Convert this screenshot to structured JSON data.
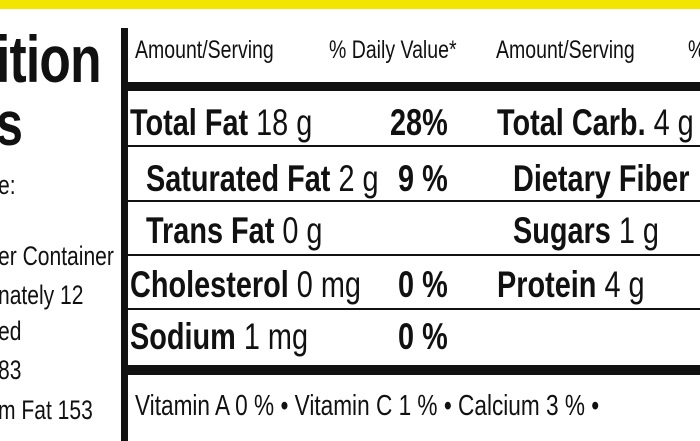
{
  "title": {
    "line1": "ition",
    "line2": "s"
  },
  "left_text": {
    "serving_size": "e:",
    "servings_label": "er Container",
    "servings_value": "nately  12",
    "amount_label": "ed",
    "calories": "83",
    "calories_fat": "m Fat 153"
  },
  "header": {
    "amount_serving_1": "Amount/Serving",
    "daily_value": "% Daily Value*",
    "amount_serving_2": "Amount/Serving",
    "daily_value_2": "%"
  },
  "left_col": [
    {
      "name": "Total Fat",
      "amount": " 18 g",
      "pct": "28%"
    },
    {
      "name": "Saturated Fat",
      "amount": " 2 g",
      "pct": "9 %"
    },
    {
      "name": "Trans Fat",
      "amount": " 0 g",
      "pct": ""
    },
    {
      "name": "Cholesterol",
      "amount": " 0 mg",
      "pct": "0 %"
    },
    {
      "name": "Sodium",
      "amount": " 1 mg",
      "pct": "0 %"
    }
  ],
  "right_col": [
    {
      "name": "Total Carb.",
      "amount": " 4 g"
    },
    {
      "name": "Dietary Fiber",
      "amount": ""
    },
    {
      "name": "Sugars",
      "amount": "  1 g"
    },
    {
      "name": "Protein",
      "amount": " 4 g"
    }
  ],
  "vitamins": "Vitamin A 0 % • Vitamin C 1 % • Calcium 3 % •"
}
